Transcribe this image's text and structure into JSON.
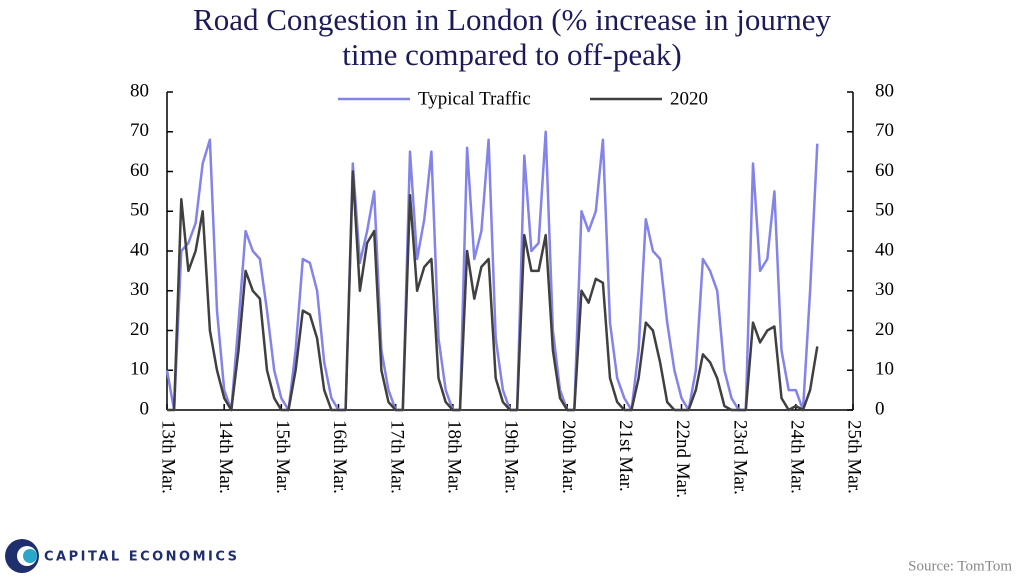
{
  "chart_data": {
    "type": "line",
    "title": "Road Congestion in London (% increase in journey time compared to off-peak)",
    "source": "Source: TomTom",
    "brand": "CAPITAL ECONOMICS",
    "categories": [
      "13th Mar.",
      null,
      null,
      null,
      null,
      null,
      null,
      null,
      "14th Mar.",
      null,
      null,
      null,
      null,
      null,
      null,
      null,
      "15th Mar.",
      null,
      null,
      null,
      null,
      null,
      null,
      null,
      "16th Mar.",
      null,
      null,
      null,
      null,
      null,
      null,
      null,
      "17th Mar.",
      null,
      null,
      null,
      null,
      null,
      null,
      null,
      "18th Mar.",
      null,
      null,
      null,
      null,
      null,
      null,
      null,
      "19th Mar.",
      null,
      null,
      null,
      null,
      null,
      null,
      null,
      "20th Mar.",
      null,
      null,
      null,
      null,
      null,
      null,
      null,
      "21st Mar.",
      null,
      null,
      null,
      null,
      null,
      null,
      null,
      "22nd Mar.",
      null,
      null,
      null,
      null,
      null,
      null,
      null,
      "23rd Mar.",
      null,
      null,
      null,
      null,
      null,
      null,
      null,
      "24th Mar.",
      null,
      null,
      null,
      null,
      null,
      null,
      null,
      "25th Mar."
    ],
    "series": [
      {
        "name": "Typical Traffic",
        "color": "#8383ea",
        "values": [
          10,
          0,
          40,
          42,
          47,
          62,
          68,
          25,
          5,
          0,
          22,
          45,
          40,
          38,
          25,
          10,
          3,
          0,
          15,
          38,
          37,
          30,
          12,
          3,
          0,
          0,
          62,
          37,
          45,
          55,
          15,
          5,
          0,
          0,
          65,
          38,
          48,
          65,
          18,
          5,
          0,
          0,
          66,
          38,
          45,
          68,
          18,
          5,
          0,
          0,
          64,
          40,
          42,
          70,
          20,
          5,
          0,
          0,
          50,
          45,
          50,
          68,
          22,
          8,
          3,
          0,
          15,
          48,
          40,
          38,
          22,
          10,
          3,
          0,
          10,
          38,
          35,
          30,
          10,
          3,
          0,
          0,
          62,
          35,
          38,
          55,
          15,
          5,
          5,
          0,
          30,
          67,
          null,
          null,
          null,
          null,
          null
        ]
      },
      {
        "name": "2020",
        "color": "#404040",
        "values": [
          0,
          0,
          53,
          35,
          40,
          50,
          20,
          10,
          3,
          0,
          15,
          35,
          30,
          28,
          10,
          3,
          0,
          0,
          10,
          25,
          24,
          18,
          5,
          0,
          0,
          0,
          60,
          30,
          42,
          45,
          10,
          2,
          0,
          0,
          54,
          30,
          36,
          38,
          8,
          2,
          0,
          0,
          40,
          28,
          36,
          38,
          8,
          2,
          0,
          0,
          44,
          35,
          35,
          44,
          15,
          3,
          0,
          0,
          30,
          27,
          33,
          32,
          8,
          2,
          0,
          0,
          8,
          22,
          20,
          12,
          2,
          0,
          0,
          0,
          5,
          14,
          12,
          8,
          1,
          0,
          0,
          0,
          22,
          17,
          20,
          21,
          3,
          0,
          1,
          0,
          5,
          16,
          null,
          null,
          null,
          null,
          null
        ]
      }
    ],
    "ylim": [
      0,
      80
    ],
    "yticks": [
      0,
      10,
      20,
      30,
      40,
      50,
      60,
      70,
      80
    ],
    "legend": "top"
  }
}
